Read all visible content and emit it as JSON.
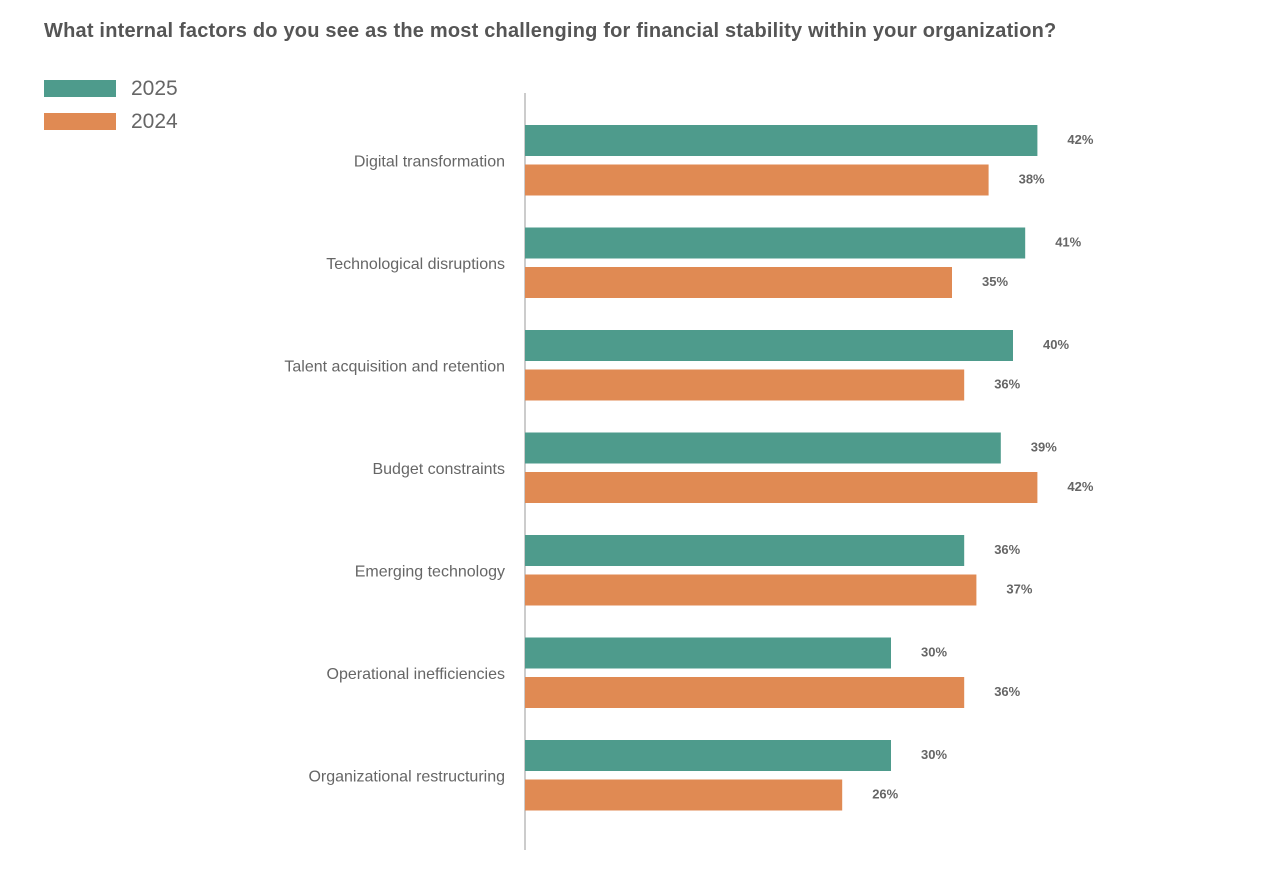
{
  "chart_data": {
    "type": "bar",
    "orientation": "horizontal",
    "title": "What internal factors do you see as the most challenging for financial stability within your organization?",
    "categories": [
      "Digital transformation",
      "Technological disruptions",
      "Talent acquisition and retention",
      "Budget constraints",
      "Emerging technology",
      "Operational inefficiencies",
      "Organizational restructuring"
    ],
    "series": [
      {
        "name": "2025",
        "color": "#4e9b8c",
        "values": [
          42,
          41,
          40,
          39,
          36,
          30,
          30
        ],
        "labels": [
          "42%",
          "41%",
          "40%",
          "39%",
          "36%",
          "30%",
          "30%"
        ]
      },
      {
        "name": "2024",
        "color": "#e08a53",
        "values": [
          38,
          35,
          36,
          42,
          37,
          36,
          26
        ],
        "labels": [
          "38%",
          "35%",
          "36%",
          "42%",
          "37%",
          "36%",
          "26%"
        ]
      }
    ],
    "xlim": [
      0,
      42
    ],
    "grid": false,
    "legend_position": "top-left",
    "value_suffix": "%"
  }
}
